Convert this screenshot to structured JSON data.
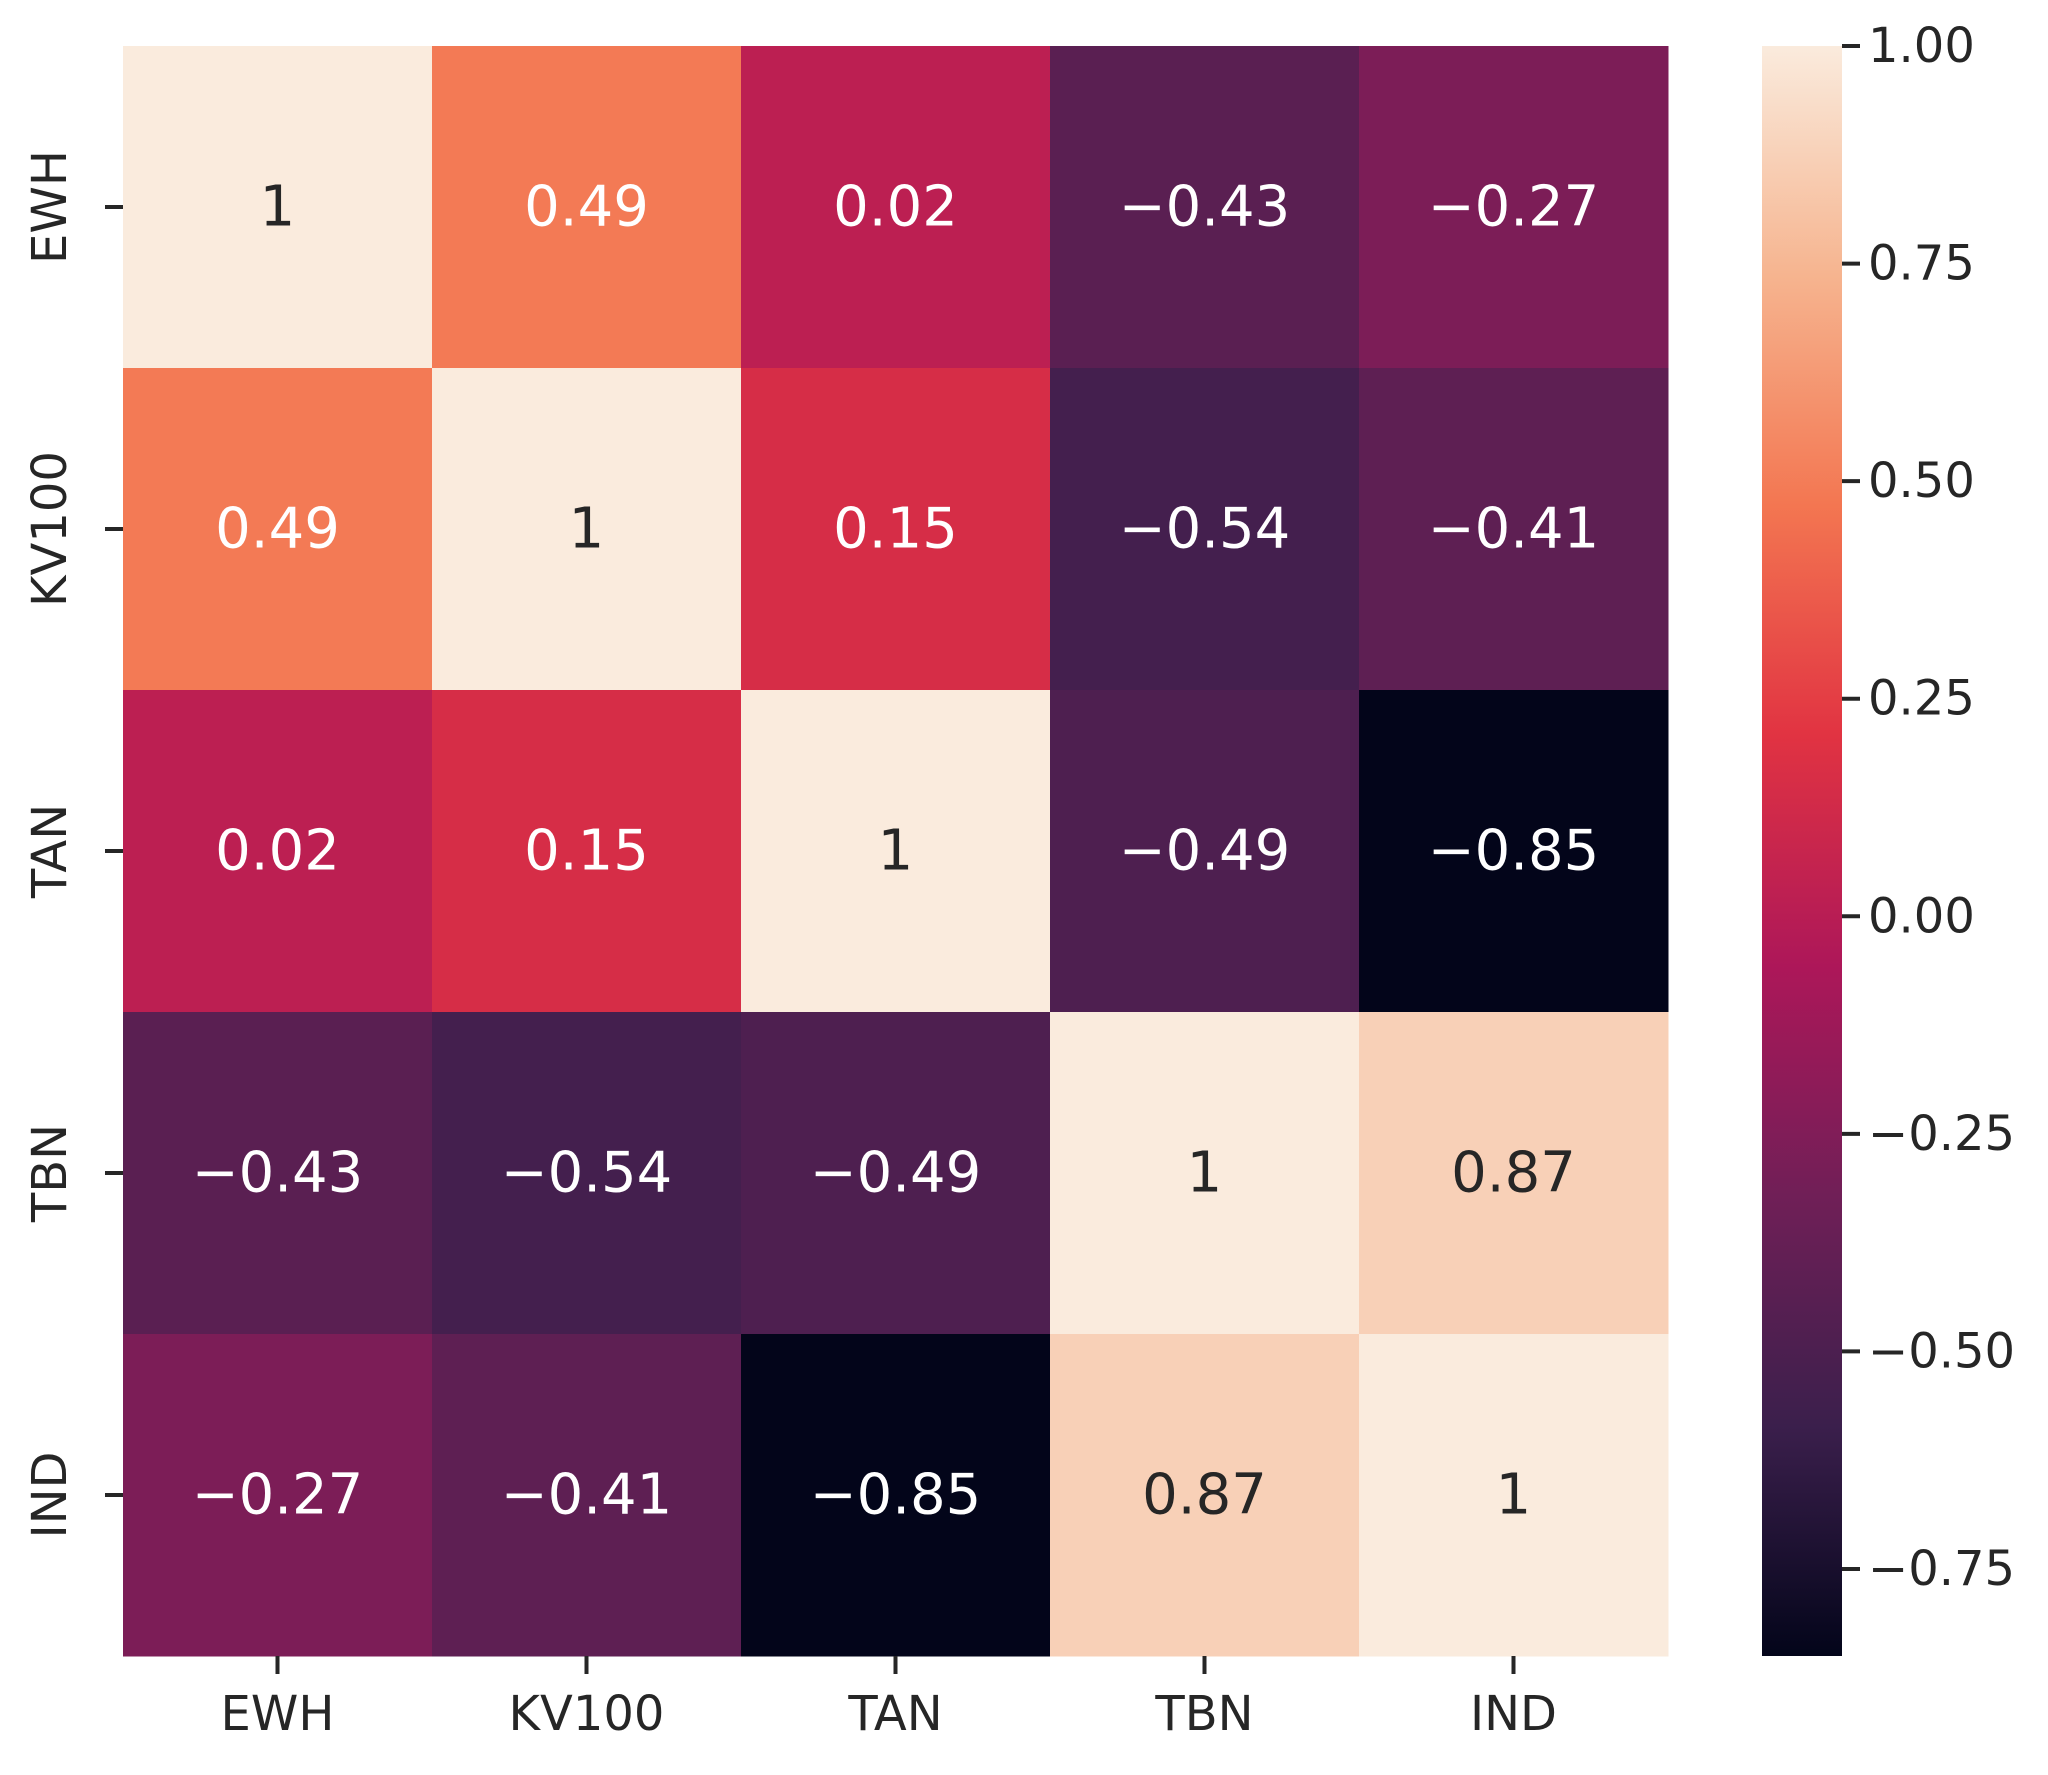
{
  "chart_data": {
    "type": "heatmap",
    "title": "",
    "xlabel": "",
    "ylabel": "",
    "x_categories": [
      "EWH",
      "KV100",
      "TAN",
      "TBN",
      "IND"
    ],
    "y_categories": [
      "EWH",
      "KV100",
      "TAN",
      "TBN",
      "IND"
    ],
    "values": [
      [
        1,
        0.49,
        0.02,
        -0.43,
        -0.27
      ],
      [
        0.49,
        1,
        0.15,
        -0.54,
        -0.41
      ],
      [
        0.02,
        0.15,
        1,
        -0.49,
        -0.85
      ],
      [
        -0.43,
        -0.54,
        -0.49,
        1,
        0.87
      ],
      [
        -0.27,
        -0.41,
        -0.85,
        0.87,
        1
      ]
    ],
    "cell_labels": [
      [
        "1",
        "0.49",
        "0.02",
        "−0.43",
        "−0.27"
      ],
      [
        "0.49",
        "1",
        "0.15",
        "−0.54",
        "−0.41"
      ],
      [
        "0.02",
        "0.15",
        "1",
        "−0.49",
        "−0.85"
      ],
      [
        "−0.43",
        "−0.54",
        "−0.49",
        "1",
        "0.87"
      ],
      [
        "−0.27",
        "−0.41",
        "−0.85",
        "0.87",
        "1"
      ]
    ],
    "colorbar": {
      "range": [
        -0.85,
        1
      ],
      "ticks": [
        1,
        0.75,
        0.5,
        0.25,
        0,
        -0.25,
        -0.5,
        -0.75
      ],
      "tick_labels": [
        "1.00",
        "0.75",
        "0.50",
        "0.25",
        "0.00",
        "−0.25",
        "−0.50",
        "−0.75"
      ],
      "colormap": "rocket"
    },
    "grid": false
  },
  "colors": {
    "text_light": "#ffffff",
    "text_dark": "#262626",
    "tick_color": "#262626",
    "colormap_stops": [
      "#03051a",
      "#3b1f4c",
      "#701f57",
      "#ad1759",
      "#e13342",
      "#f37651",
      "#f6b48f",
      "#faebdd"
    ]
  }
}
